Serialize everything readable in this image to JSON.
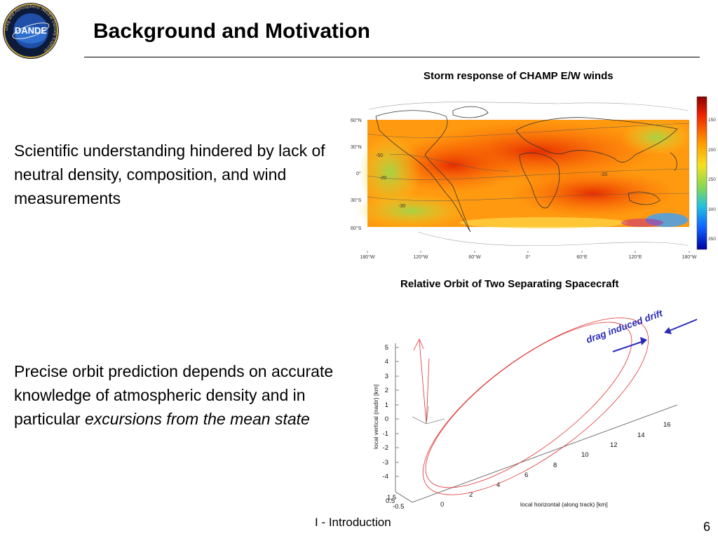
{
  "logo": {
    "ring_text": "Drag and Atmospheric Neutral Density Explorer",
    "center_text": "DANDE"
  },
  "title": "Background and Motivation",
  "bullets": {
    "first": "Scientific understanding hindered by lack of neutral density, composition, and wind measurements",
    "second_plain": "Precise orbit prediction depends on accurate knowledge of atmospheric density and in particular ",
    "second_italic": "excursions from the mean state"
  },
  "map_figure": {
    "caption": "Storm response of CHAMP E/W winds",
    "lat_labels": [
      "60°N",
      "30°N",
      "0°",
      "30°S",
      "60°S"
    ],
    "lon_labels": [
      "180°W",
      "120°W",
      "60°W",
      "0°",
      "60°E",
      "120°E",
      "180°W"
    ],
    "colorbar_labels": [
      "150",
      "200",
      "250",
      "300",
      "350"
    ],
    "contour_labels": [
      "-50",
      "-20",
      "-30",
      "-20"
    ]
  },
  "orbit_figure": {
    "caption": "Relative Orbit of Two Separating Spacecraft",
    "annotation": "drag induced drift",
    "y_label": "local vertical (nadir) [km]",
    "x_label": "local horizontal (along track) [km]",
    "y_ticks": [
      "5",
      "4",
      "3",
      "2",
      "1",
      "0",
      "-1",
      "-2",
      "-3",
      "-4"
    ],
    "x_ticks": [
      "0",
      "2",
      "4",
      "6",
      "8",
      "10",
      "12",
      "14",
      "16"
    ],
    "z_ticks": [
      "1.5",
      "0.5",
      "-0.5"
    ],
    "colors": {
      "orbit": "#e03030",
      "arrow": "#2a2ab8",
      "annotation": "#2a2ab8"
    }
  },
  "footer": "I - Introduction",
  "page_number": "6"
}
